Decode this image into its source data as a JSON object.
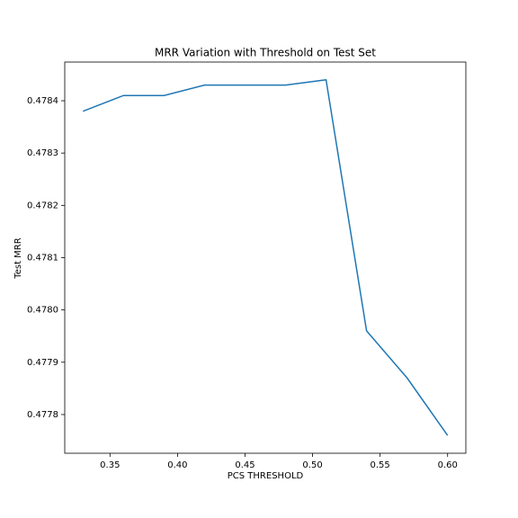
{
  "chart_data": {
    "type": "line",
    "title": "MRR Variation with Threshold on Test Set",
    "x_label": "PCS THRESHOLD",
    "y_label": "Test MRR",
    "x": [
      0.33,
      0.36,
      0.39,
      0.42,
      0.45,
      0.48,
      0.51,
      0.54,
      0.57,
      0.6
    ],
    "series": [
      {
        "color": "#1f77b4",
        "values": [
          0.47838,
          0.47841,
          0.47841,
          0.47843,
          0.47843,
          0.47843,
          0.47844,
          0.47796,
          0.47787,
          0.47776
        ]
      }
    ],
    "xlim": [
      0.3165,
      0.6135
    ],
    "xticks": [
      0.35,
      {
        "value": 0.4,
        "label": "0.40"
      },
      0.45,
      {
        "value": 0.5,
        "label": "0.50"
      },
      0.55,
      {
        "value": 0.6,
        "label": "0.60"
      }
    ],
    "ylim": [
      0.477726,
      0.478474
    ],
    "yticks": [
      0.4778,
      0.4779,
      {
        "value": 0.478,
        "label": "0.4780"
      },
      0.4781,
      0.4782,
      0.4783,
      0.4784
    ]
  }
}
